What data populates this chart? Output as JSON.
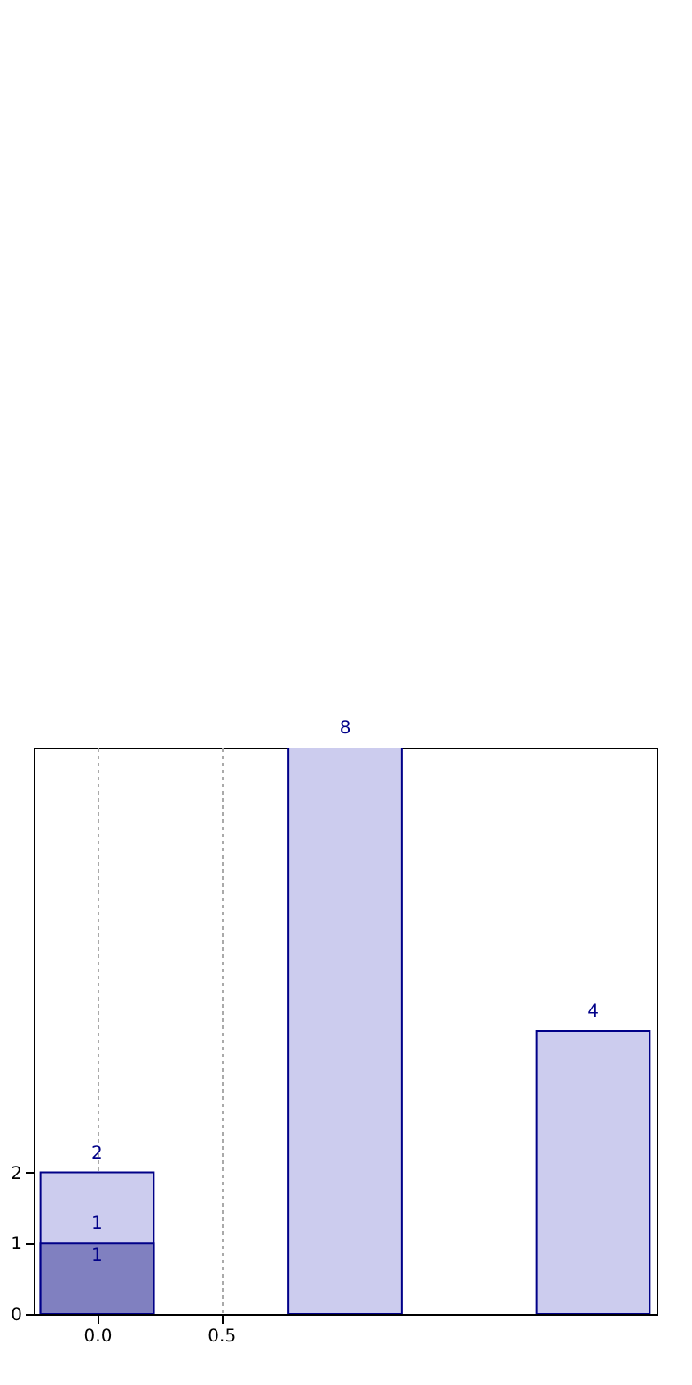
{
  "chart_data": {
    "type": "bar",
    "x": [
      0,
      1,
      2
    ],
    "series": [
      {
        "color": "#ccccee",
        "values": [
          2,
          8,
          4
        ]
      },
      {
        "color": "#8080c0",
        "values": [
          1,
          null,
          null
        ]
      }
    ],
    "xlim": [
      -0.22,
      2.22
    ],
    "ylim": [
      0,
      8
    ],
    "xticks": [
      {
        "value": 0,
        "label": "0.0"
      },
      {
        "value": 0.5,
        "label": "0.5"
      }
    ],
    "yticks": [
      0,
      1,
      2
    ],
    "grid": "x",
    "data_labels": true,
    "annotations": [
      {
        "text": "1",
        "x": 0,
        "y": 1
      }
    ]
  }
}
